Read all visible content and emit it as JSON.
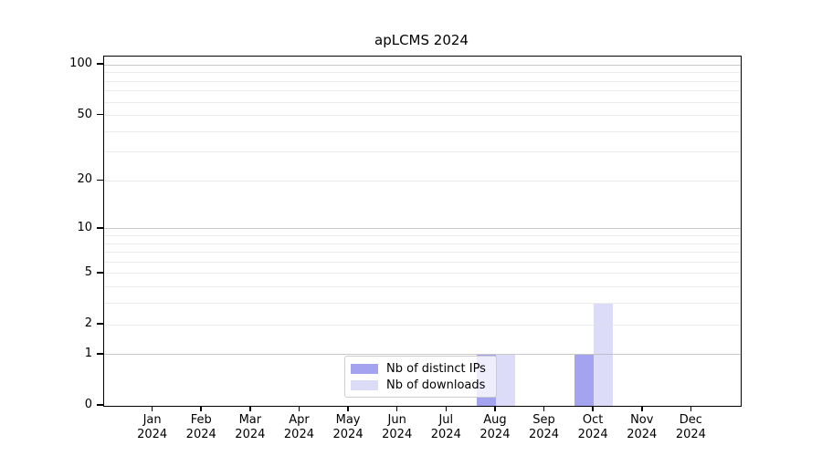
{
  "chart_data": {
    "type": "bar",
    "title": "apLCMS 2024",
    "categories": [
      {
        "month": "Jan",
        "year": "2024"
      },
      {
        "month": "Feb",
        "year": "2024"
      },
      {
        "month": "Mar",
        "year": "2024"
      },
      {
        "month": "Apr",
        "year": "2024"
      },
      {
        "month": "May",
        "year": "2024"
      },
      {
        "month": "Jun",
        "year": "2024"
      },
      {
        "month": "Jul",
        "year": "2024"
      },
      {
        "month": "Aug",
        "year": "2024"
      },
      {
        "month": "Sep",
        "year": "2024"
      },
      {
        "month": "Oct",
        "year": "2024"
      },
      {
        "month": "Nov",
        "year": "2024"
      },
      {
        "month": "Dec",
        "year": "2024"
      }
    ],
    "series": [
      {
        "name": "Nb of distinct IPs",
        "color": "#a3a3f0",
        "values": [
          0,
          0,
          0,
          0,
          0,
          0,
          0,
          1,
          0,
          1,
          0,
          0
        ]
      },
      {
        "name": "Nb of downloads",
        "color": "#dcdcf9",
        "values": [
          0,
          0,
          0,
          0,
          0,
          0,
          0,
          1,
          0,
          3,
          0,
          0
        ]
      }
    ],
    "y_axis": {
      "ticks": [
        0,
        1,
        2,
        5,
        10,
        20,
        50,
        100
      ],
      "scale": "log10(1+y)",
      "ylim": [
        0,
        101
      ]
    },
    "grid": {
      "major_lines": [
        1,
        10,
        100
      ],
      "minor_lines": [
        2,
        3,
        4,
        5,
        6,
        7,
        8,
        9,
        20,
        30,
        40,
        50,
        60,
        70,
        80,
        90
      ]
    },
    "legend_position": "lower-center"
  }
}
